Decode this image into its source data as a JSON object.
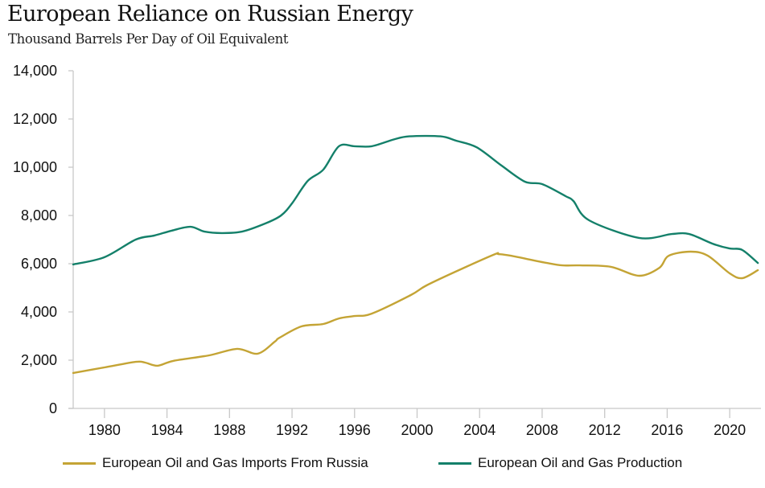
{
  "header": {
    "title": "European Reliance on Russian Energy",
    "subtitle": "Thousand Barrels Per Day of Oil Equivalent"
  },
  "chart_data": {
    "type": "line",
    "title": "European Reliance on Russian Energy",
    "subtitle": "Thousand Barrels Per Day of Oil Equivalent",
    "xlabel": "",
    "ylabel": "Thousand Barrels Per Day of Oil Equivalent",
    "xlim": [
      1978,
      2022
    ],
    "ylim": [
      0,
      14000
    ],
    "x_ticks": [
      1980,
      1984,
      1988,
      1992,
      1996,
      2000,
      2004,
      2008,
      2012,
      2016,
      2020
    ],
    "y_ticks": [
      0,
      2000,
      4000,
      6000,
      8000,
      10000,
      12000,
      14000
    ],
    "x_tick_labels": [
      "1980",
      "1984",
      "1988",
      "1992",
      "1996",
      "2000",
      "2004",
      "2008",
      "2012",
      "2016",
      "2020"
    ],
    "y_tick_labels": [
      "0",
      "2,000",
      "4,000",
      "6,000",
      "8,000",
      "10,000",
      "12,000",
      "14,000"
    ],
    "grid": false,
    "legend_position": "bottom",
    "series": [
      {
        "name": "European Oil and Gas Imports From Russia",
        "color": "#C4A435",
        "x": [
          1978,
          1980,
          1982,
          1982.6,
          1983.4,
          1984.4,
          1986.7,
          1988.5,
          1989.8,
          1990.9,
          1991.2,
          1992.6,
          1994,
          1995,
          1996,
          1997.1,
          1999.6,
          2000.6,
          2002.9,
          2005,
          2005.2,
          2006,
          2008.3,
          2009.3,
          2010.4,
          2012.4,
          2014.2,
          2015.5,
          2016.1,
          2017.5,
          2018.6,
          2020,
          2020.8,
          2021.8
        ],
        "values": [
          1470,
          1700,
          1930,
          1900,
          1770,
          1970,
          2200,
          2470,
          2270,
          2770,
          2930,
          3400,
          3500,
          3730,
          3830,
          3930,
          4700,
          5100,
          5800,
          6400,
          6400,
          6330,
          6030,
          5930,
          5930,
          5870,
          5500,
          5830,
          6330,
          6500,
          6330,
          5600,
          5400,
          5730
        ]
      },
      {
        "name": "European Oil and Gas Production",
        "color": "#14806A",
        "x": [
          1978,
          1980,
          1982,
          1983.2,
          1984.3,
          1985.5,
          1986.4,
          1987.5,
          1988.8,
          1990.3,
          1991.3,
          1992,
          1993,
          1994,
          1995,
          1996,
          1997.1,
          1998.5,
          1999.5,
          2001.5,
          2002.5,
          2003.8,
          2005.4,
          2006.9,
          2008,
          2009.5,
          2010,
          2011,
          2014.2,
          2016.3,
          2017.4,
          2018.9,
          2020,
          2020.8,
          2021.8
        ],
        "values": [
          5970,
          6270,
          7000,
          7170,
          7370,
          7530,
          7330,
          7270,
          7330,
          7670,
          8000,
          8500,
          9430,
          9900,
          10870,
          10870,
          10870,
          11150,
          11280,
          11280,
          11100,
          10830,
          10070,
          9400,
          9300,
          8800,
          8600,
          7800,
          7070,
          7230,
          7230,
          6830,
          6630,
          6570,
          6030
        ]
      }
    ]
  },
  "legend": {
    "items": [
      {
        "label": "European Oil and Gas Imports From Russia",
        "color": "#C4A435"
      },
      {
        "label": "European Oil and Gas Production",
        "color": "#14806A"
      }
    ]
  }
}
